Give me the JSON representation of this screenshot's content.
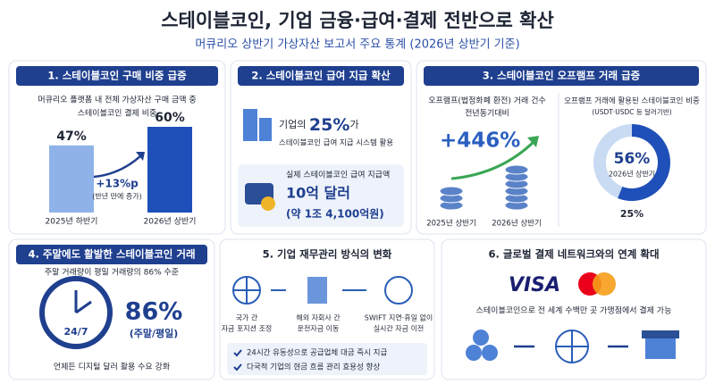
{
  "header": {
    "title": "스테이블코인, 기업 금융·급여·결제 전반으로 확산",
    "subtitle": "머큐리오 상반기 가상자산 보고서 주요 통계 (2026년 상반기 기준)"
  },
  "panels": [
    {
      "title": "1. 스테이블코인 구매 비중 급증",
      "caption": [
        "머큐리오 플랫폼 내 전체 가상자산 구매 금액 중",
        "스테이블코인 결제 비중"
      ],
      "categories": [
        "2025년 하반기",
        "2026년 상반기"
      ],
      "values": [
        47,
        60
      ],
      "value_labels": [
        "47%",
        "60%"
      ],
      "change": "+13%p",
      "change_note": "(반년 만에 증가)"
    },
    {
      "title": "2. 스테이블코인 급여 지급 확산",
      "stat_prefix": "기업의",
      "stat_value": "25%",
      "stat_suffix": "가",
      "stat_note": "스테이블코인 급여 지급 시스템 활용",
      "payout_caption": "실제 스테이블코인 급여 지급액",
      "payout_value": "10억 달러",
      "payout_note": "(약 1조 4,100억원)"
    },
    {
      "title": "3. 스테이블코인 오프램프 거래 급증",
      "left_caption": "오프램프(법정화폐 환전) 거래 건수",
      "left_sub": "전년동기대비",
      "growth": "+446%",
      "periods": [
        "2025년 상반기",
        "2026년 상반기"
      ],
      "right_caption": "오프램프 거래에 활용된 스테이블코인 비중",
      "right_sub": "(USDT·USDC 등 달러기반)",
      "share": 56,
      "share_label": "56%",
      "share_period": "2026년 상반기",
      "prior_label": "25%"
    },
    {
      "title": "4. 주말에도 활발한 스테이블코인 거래",
      "caption": "주말 거래량이 평일 거래량의 86% 수준",
      "clock": "24/7",
      "value": "86%",
      "value_note": "(주말/평일)",
      "footer": "언제든 디지털 달러 활용 수요 강화"
    },
    {
      "title": "5. 기업 재무관리 방식의 변화",
      "steps": [
        [
          "국가 간",
          "자금 포지션 조정"
        ],
        [
          "해외 자회사 간",
          "운전자금 이동"
        ],
        [
          "SWIFT 지연·휴일 없이",
          "실시간 자금 이전"
        ]
      ],
      "checks": [
        "24시간 유동성으로 공급업체 대금 즉시 지급",
        "다국적 기업의 현금 흐름 관리 효용성 향상"
      ]
    },
    {
      "title": "6. 글로벌 결제 네트워크와의 연계 확대",
      "brand": "VISA",
      "caption": "스테이블코인으로 전 세계 수백만 곳 가맹점에서 결제 가능"
    }
  ]
}
